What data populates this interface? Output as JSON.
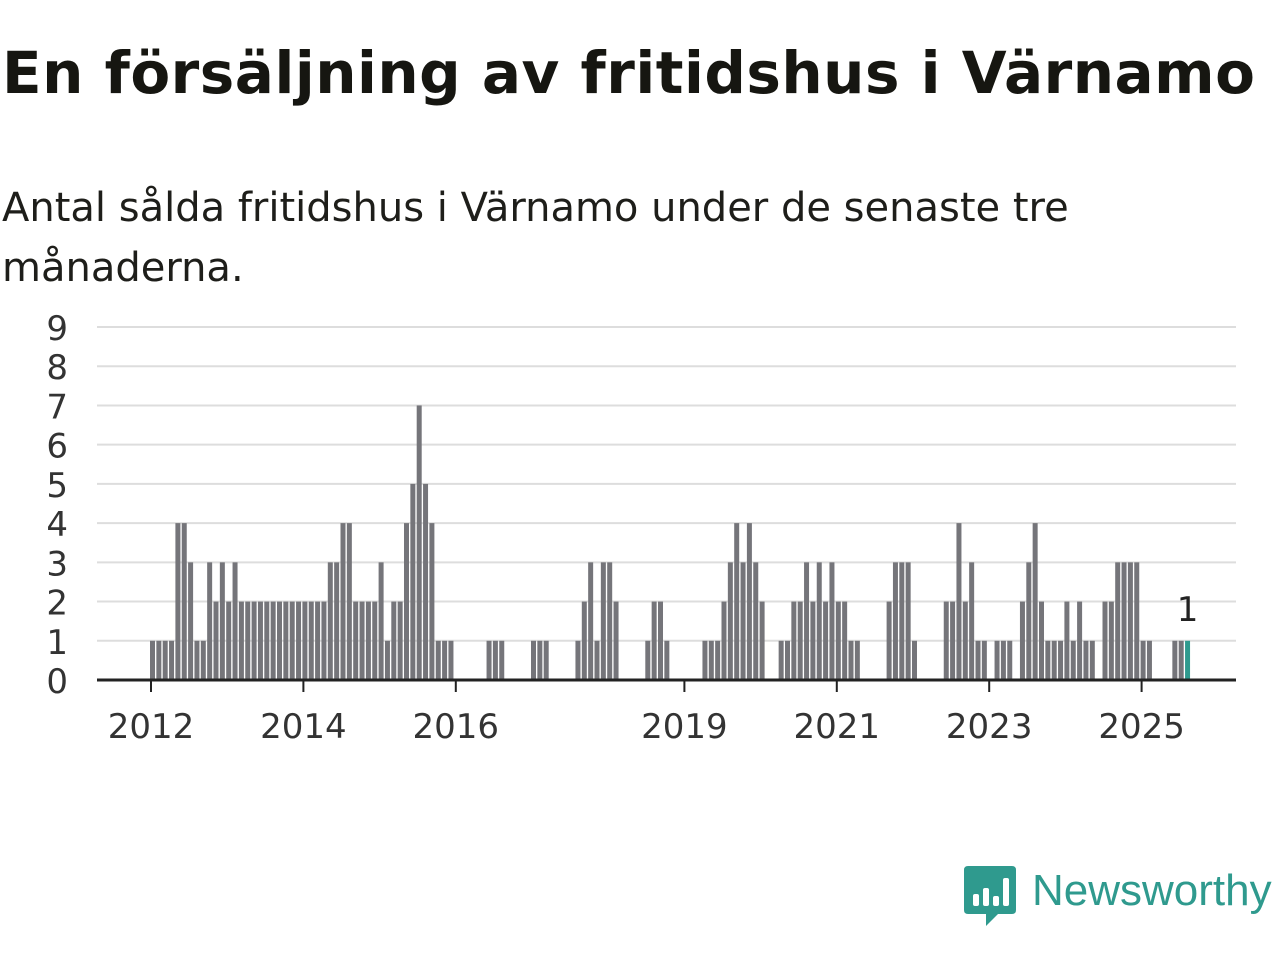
{
  "header": {
    "title": "En försäljning av fritidshus i Värnamo",
    "subtitle": "Antal sålda fritidshus i Värnamo under de senaste tre månaderna."
  },
  "brand": {
    "name": "Newsworthy",
    "icon": "newsworthy-logo-icon",
    "color": "#2f9a8e"
  },
  "colors": {
    "bar": "#75757a",
    "highlight": "#2f9a8e",
    "grid": "#dddddd",
    "axis": "#222222"
  },
  "chart_data": {
    "type": "bar",
    "title": "En försäljning av fritidshus i Värnamo",
    "subtitle": "Antal sålda fritidshus i Värnamo under de senaste tre månaderna.",
    "xlabel": "",
    "ylabel": "",
    "x_ticks": [
      "2012",
      "2014",
      "2016",
      "2019",
      "2021",
      "2023",
      "2025"
    ],
    "y_ticks": [
      "0",
      "1",
      "2",
      "3",
      "4",
      "5",
      "6",
      "7",
      "8",
      "9"
    ],
    "ylim": [
      0,
      9
    ],
    "grid": "horizontal",
    "start_month": "2012-01",
    "end_month": "2025-07",
    "values": [
      1,
      1,
      1,
      1,
      4,
      4,
      3,
      1,
      1,
      3,
      2,
      3,
      2,
      3,
      2,
      2,
      2,
      2,
      2,
      2,
      2,
      2,
      2,
      2,
      2,
      2,
      2,
      2,
      3,
      3,
      4,
      4,
      2,
      2,
      2,
      2,
      3,
      1,
      2,
      2,
      4,
      5,
      7,
      5,
      4,
      1,
      1,
      1,
      0,
      0,
      0,
      0,
      0,
      1,
      1,
      1,
      0,
      0,
      0,
      0,
      1,
      1,
      1,
      0,
      0,
      0,
      0,
      1,
      2,
      3,
      1,
      3,
      3,
      2,
      0,
      0,
      0,
      0,
      1,
      2,
      2,
      1,
      0,
      0,
      0,
      0,
      0,
      1,
      1,
      1,
      2,
      3,
      4,
      3,
      4,
      3,
      2,
      0,
      0,
      1,
      1,
      2,
      2,
      3,
      2,
      3,
      2,
      3,
      2,
      2,
      1,
      1,
      0,
      0,
      0,
      0,
      2,
      3,
      3,
      3,
      1,
      0,
      0,
      0,
      0,
      2,
      2,
      4,
      2,
      3,
      1,
      1,
      0,
      1,
      1,
      1,
      0,
      2,
      3,
      4,
      2,
      1,
      1,
      1,
      2,
      1,
      2,
      1,
      1,
      0,
      2,
      2,
      3,
      3,
      3,
      3,
      1,
      1,
      0,
      0,
      0,
      1,
      1,
      1
    ],
    "highlight_last": true,
    "annotation": {
      "text": "1",
      "target": "last"
    }
  }
}
